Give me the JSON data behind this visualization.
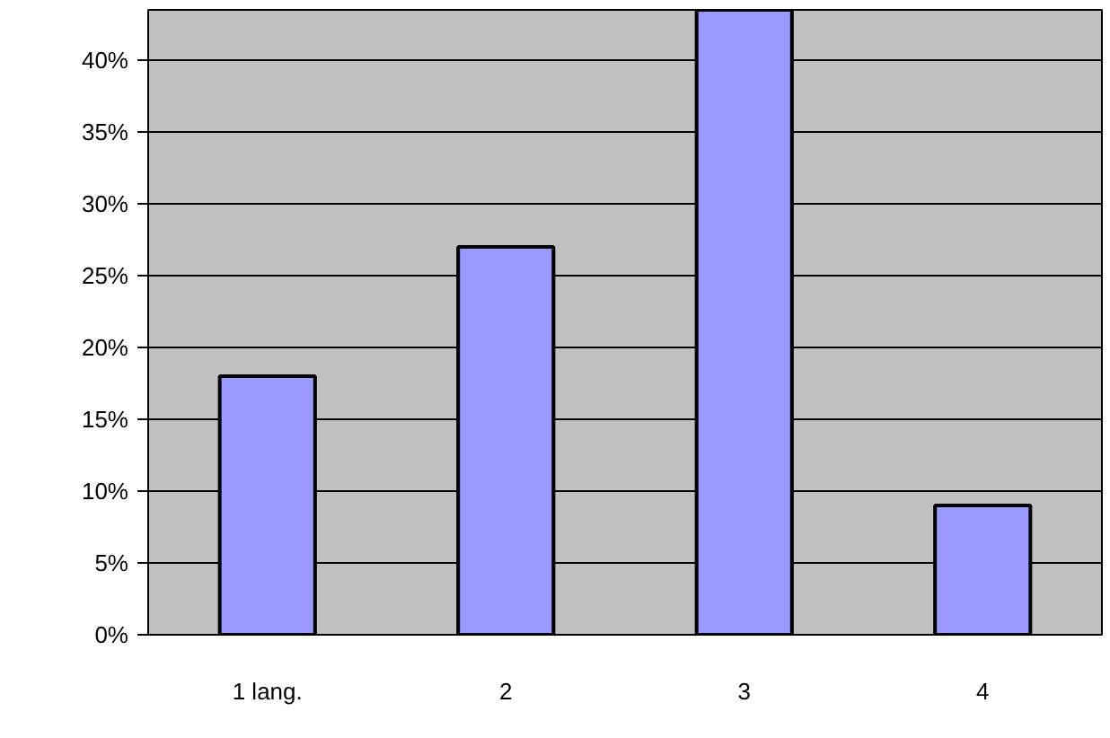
{
  "chart_data": {
    "type": "bar",
    "categories": [
      "1 lang.",
      "2",
      "3",
      "4"
    ],
    "values": [
      18,
      27,
      43.5,
      9
    ],
    "color": "#9999ff",
    "ylim": [
      0,
      43.5
    ],
    "yticks": [
      {
        "value": 0,
        "label": "0%"
      },
      {
        "value": 5,
        "label": "5%"
      },
      {
        "value": 10,
        "label": "10%"
      },
      {
        "value": 15,
        "label": "15%"
      },
      {
        "value": 20,
        "label": "20%"
      },
      {
        "value": 25,
        "label": "25%"
      },
      {
        "value": 30,
        "label": "30%"
      },
      {
        "value": 35,
        "label": "35%"
      },
      {
        "value": 40,
        "label": "40%"
      }
    ],
    "grid": "y"
  }
}
